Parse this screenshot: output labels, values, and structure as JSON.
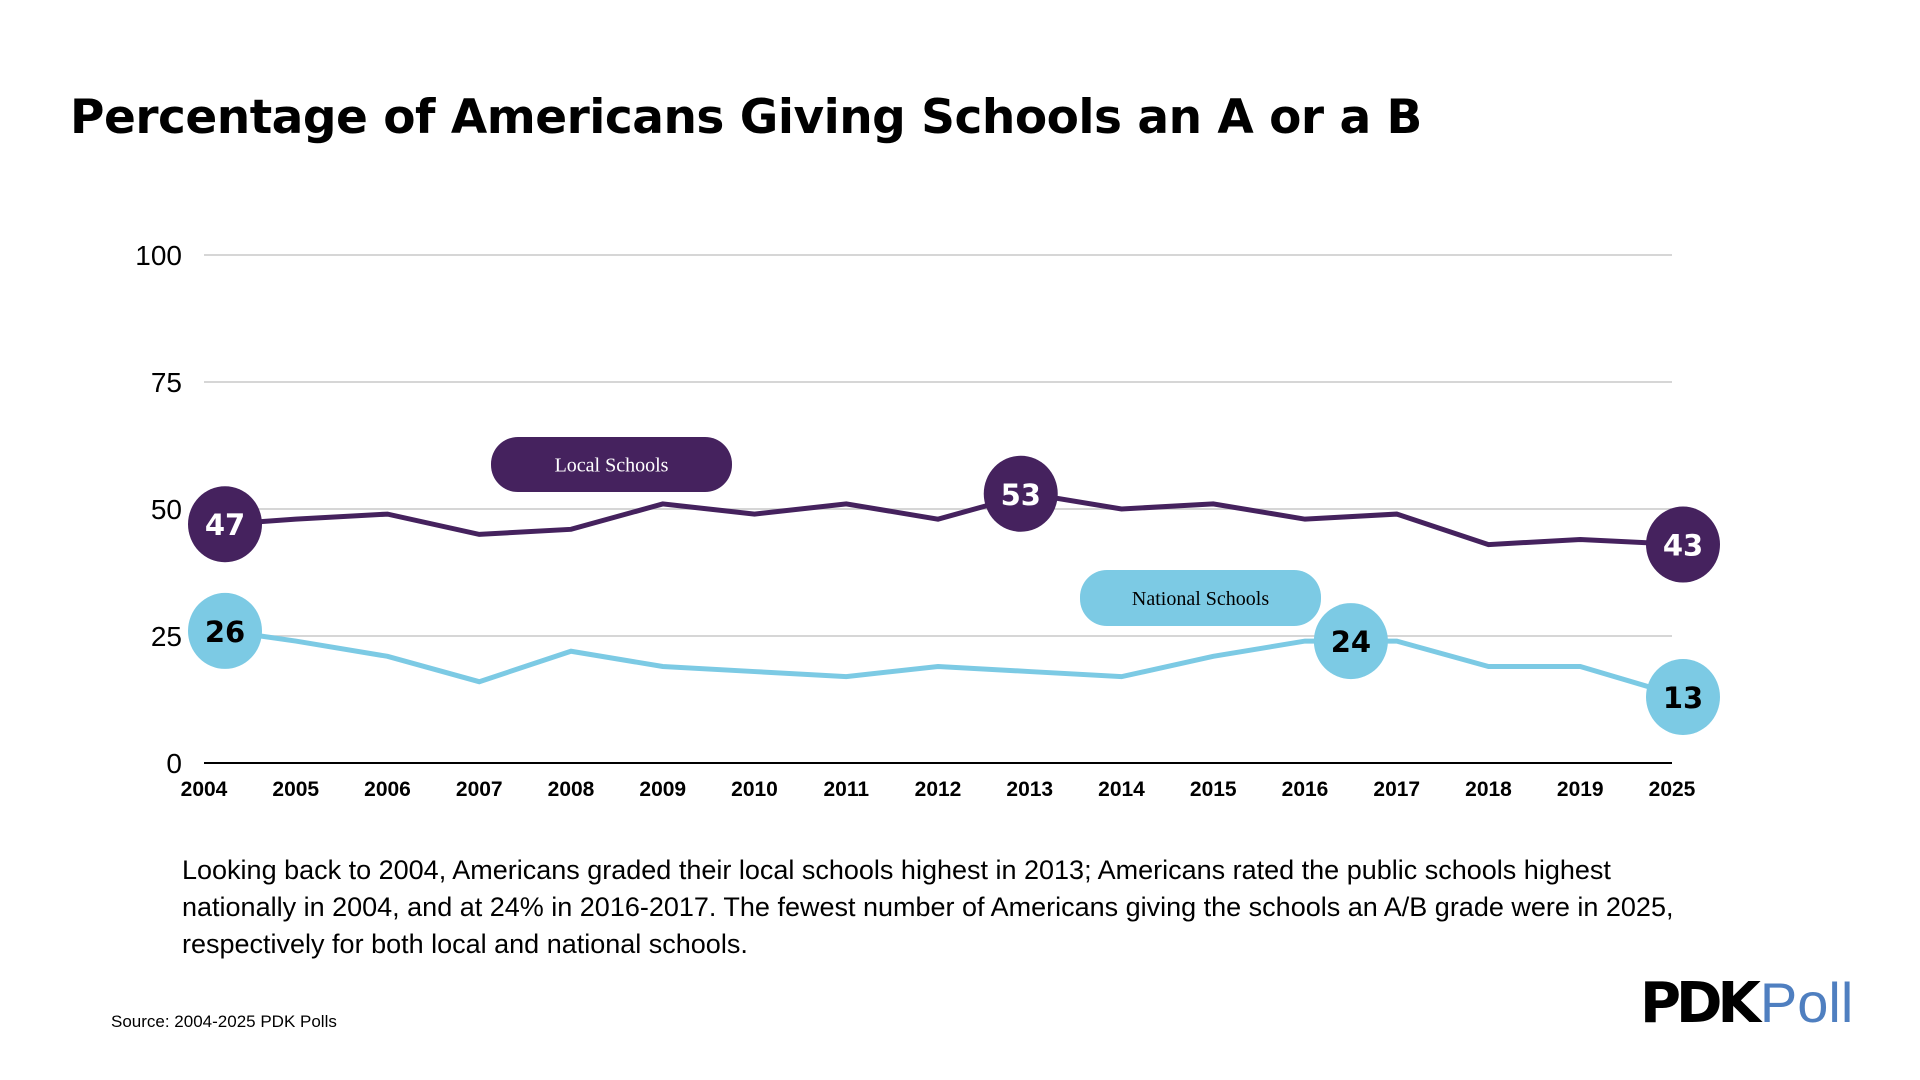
{
  "chart_data": {
    "type": "line",
    "title": "Percentage of Americans Giving Schools an A or a B",
    "categories": [
      "2004",
      "2005",
      "2006",
      "2007",
      "2008",
      "2009",
      "2010",
      "2011",
      "2012",
      "2013",
      "2014",
      "2015",
      "2016",
      "2017",
      "2018",
      "2019",
      "2025"
    ],
    "ylim": [
      0,
      100
    ],
    "yticks": [
      "0",
      "25",
      "50",
      "75",
      "100"
    ],
    "grid": true,
    "series": [
      {
        "name": "Local Schools",
        "color": "#45225e",
        "text_color": "#ffffff",
        "values": [
          47,
          48,
          49,
          45,
          46,
          51,
          49,
          51,
          48,
          53,
          50,
          51,
          48,
          49,
          43,
          44,
          43
        ]
      },
      {
        "name": "National Schools",
        "color": "#7ccae4",
        "text_color": "#000000",
        "values": [
          26,
          24,
          21,
          16,
          22,
          19,
          18,
          17,
          19,
          18,
          17,
          21,
          24,
          24,
          19,
          19,
          13
        ]
      }
    ],
    "highlights": [
      {
        "series": 0,
        "index": 0,
        "label": "47"
      },
      {
        "series": 0,
        "index": 9,
        "label": "53"
      },
      {
        "series": 0,
        "index": 16,
        "label": "43"
      },
      {
        "series": 1,
        "index": 0,
        "label": "26"
      },
      {
        "series": 1,
        "index": 12.5,
        "label": "24"
      },
      {
        "series": 1,
        "index": 16,
        "label": "13"
      }
    ]
  },
  "description": "Looking back to 2004, Americans graded their local schools highest in 2013; Americans rated the public schools highest nationally in 2004, and at 24% in 2016-2017. The fewest number of Americans giving the schools an A/B grade were in 2025, respectively for both local and national schools.",
  "source": "Source: 2004-2025 PDK Polls",
  "logo": {
    "pdk": "PDK",
    "poll": "Poll"
  }
}
